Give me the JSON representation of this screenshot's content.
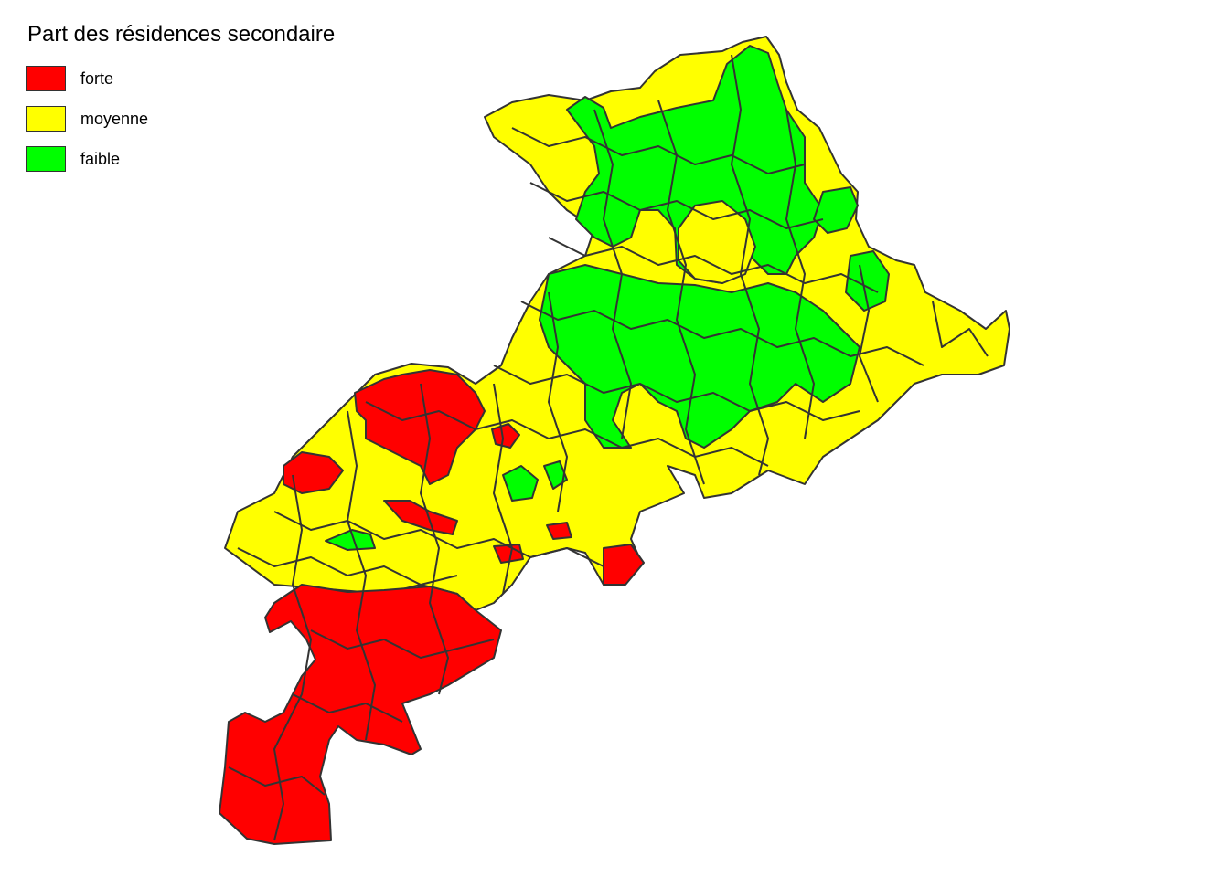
{
  "legend": {
    "title": "Part des résidences secondaire",
    "items": [
      {
        "label": "forte",
        "color": "#FF0000"
      },
      {
        "label": "moyenne",
        "color": "#FFFF00"
      },
      {
        "label": "faible",
        "color": "#00FF00"
      }
    ]
  },
  "map": {
    "region_fill": {
      "forte": "#FF0000",
      "moyenne": "#FFFF00",
      "faible": "#00FF00"
    },
    "border_color": "#333333"
  }
}
